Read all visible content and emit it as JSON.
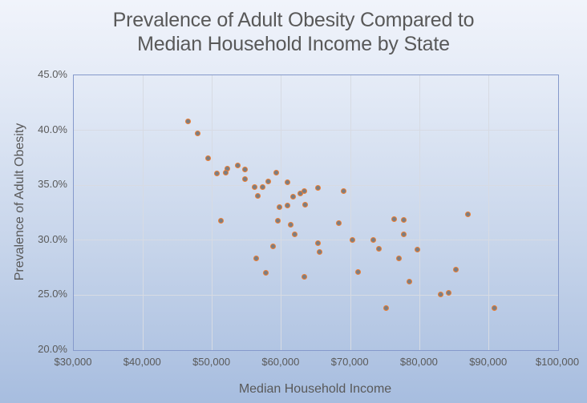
{
  "title": "Prevalence of Adult Obesity Compared to Median Household Income by State",
  "x_axis": {
    "title": "Median Household Income",
    "min": 30000,
    "max": 100000,
    "ticks": [
      {
        "value": 30000,
        "label": "$30,000"
      },
      {
        "value": 40000,
        "label": "$40,000"
      },
      {
        "value": 50000,
        "label": "$50,000"
      },
      {
        "value": 60000,
        "label": "$60,000"
      },
      {
        "value": 70000,
        "label": "$70,000"
      },
      {
        "value": 80000,
        "label": "$80,000"
      },
      {
        "value": 90000,
        "label": "$90,000"
      },
      {
        "value": 100000,
        "label": "$100,000"
      }
    ]
  },
  "y_axis": {
    "title": "Prevalence of Adult Obesity",
    "min": 20,
    "max": 45,
    "ticks": [
      {
        "value": 45,
        "label": "45.0%"
      },
      {
        "value": 40,
        "label": "40.0%"
      },
      {
        "value": 35,
        "label": "35.0%"
      },
      {
        "value": 30,
        "label": "30.0%"
      },
      {
        "value": 25,
        "label": "25.0%"
      },
      {
        "value": 20,
        "label": "20.0%"
      }
    ]
  },
  "colors": {
    "marker_fill": "#7a7e84",
    "marker_border": "#ed7d31",
    "plot_border": "#8599cb",
    "gridline": "#d7dbe3",
    "text": "#595959"
  },
  "chart_data": {
    "type": "scatter",
    "title": "Prevalence of Adult Obesity Compared to Median Household Income by State",
    "xlabel": "Median Household Income",
    "ylabel": "Prevalence of Adult Obesity",
    "xlim": [
      30000,
      100000
    ],
    "ylim": [
      20,
      45
    ],
    "grid": true,
    "legend": "none",
    "point_format": [
      "median_household_income_usd",
      "adult_obesity_pct"
    ],
    "points": [
      [
        46600,
        40.8
      ],
      [
        48000,
        39.7
      ],
      [
        49500,
        37.4
      ],
      [
        50800,
        36.0
      ],
      [
        52200,
        36.5
      ],
      [
        52000,
        36.1
      ],
      [
        53800,
        36.8
      ],
      [
        54800,
        36.4
      ],
      [
        54800,
        35.5
      ],
      [
        56200,
        34.8
      ],
      [
        56700,
        34.0
      ],
      [
        57400,
        34.8
      ],
      [
        58200,
        35.3
      ],
      [
        59300,
        36.1
      ],
      [
        61000,
        35.2
      ],
      [
        59800,
        33.0
      ],
      [
        61000,
        33.1
      ],
      [
        61800,
        33.9
      ],
      [
        62800,
        34.2
      ],
      [
        63400,
        34.4
      ],
      [
        63500,
        33.2
      ],
      [
        65300,
        34.7
      ],
      [
        69100,
        34.4
      ],
      [
        51300,
        31.7
      ],
      [
        59500,
        31.7
      ],
      [
        61400,
        31.4
      ],
      [
        62000,
        30.5
      ],
      [
        58900,
        29.4
      ],
      [
        56400,
        28.3
      ],
      [
        57800,
        27.0
      ],
      [
        63400,
        26.6
      ],
      [
        68400,
        31.5
      ],
      [
        65300,
        29.7
      ],
      [
        65600,
        28.9
      ],
      [
        70300,
        30.0
      ],
      [
        73400,
        30.0
      ],
      [
        74200,
        29.2
      ],
      [
        76300,
        31.9
      ],
      [
        77800,
        31.8
      ],
      [
        77800,
        30.5
      ],
      [
        79700,
        29.1
      ],
      [
        77000,
        28.3
      ],
      [
        71100,
        27.1
      ],
      [
        78600,
        26.2
      ],
      [
        85300,
        27.3
      ],
      [
        87000,
        32.3
      ],
      [
        83100,
        25.0
      ],
      [
        84200,
        25.2
      ],
      [
        75200,
        23.8
      ],
      [
        90800,
        23.8
      ]
    ]
  }
}
